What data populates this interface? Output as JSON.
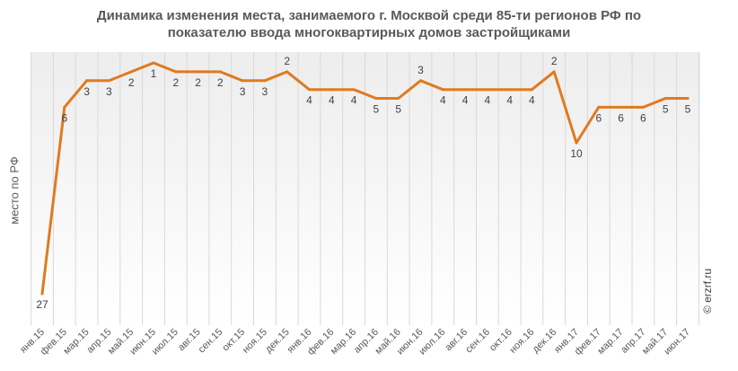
{
  "title_lines": [
    "Динамика изменения места, занимаемого г. Москвой среди 85-ти регионов РФ по",
    "показателю ввода многоквартирных домов застройщиками"
  ],
  "watermark": "© erzrf.ru",
  "colors": {
    "line": "#E07A1F",
    "grid": "#D9D9D9",
    "plot_gradient_top": "#EDEDED",
    "plot_gradient_bottom": "#FFFFFF",
    "label": "#404040",
    "axis_text": "#595959"
  },
  "chart_data": {
    "type": "line",
    "title": "Динамика изменения места, занимаемого г. Москвой среди 85-ти регионов РФ по показателю ввода многоквартирных домов застройщиками",
    "xlabel": "",
    "ylabel": "место по РФ",
    "y_reversed": true,
    "ylim": [
      1,
      27
    ],
    "grid": "vertical",
    "legend": "none",
    "categories": [
      "янв.15",
      "фев.15",
      "мар.15",
      "апр.15",
      "май.15",
      "июн.15",
      "июл.15",
      "авг.15",
      "сен.15",
      "окт.15",
      "ноя.15",
      "дек.15",
      "янв.16",
      "фев.16",
      "мар.16",
      "апр.16",
      "май.16",
      "июн.16",
      "июл.16",
      "авг.16",
      "сен.16",
      "окт.16",
      "ноя.16",
      "дек.16",
      "янв.17",
      "фев.17",
      "мар.17",
      "апр.17",
      "май.17",
      "июн.17"
    ],
    "series": [
      {
        "values": [
          27,
          6,
          3,
          3,
          2,
          1,
          2,
          2,
          2,
          3,
          3,
          2,
          4,
          4,
          4,
          5,
          5,
          3,
          4,
          4,
          4,
          4,
          4,
          2,
          10,
          6,
          6,
          6,
          5,
          5
        ],
        "label_positions": [
          "below",
          "below",
          "below",
          "below",
          "below",
          "below",
          "below",
          "below",
          "below",
          "below",
          "below",
          "above",
          "below",
          "below",
          "below",
          "below",
          "below",
          "above",
          "below",
          "below",
          "below",
          "below",
          "below",
          "above",
          "below",
          "below",
          "below",
          "below",
          "below",
          "below"
        ]
      }
    ]
  }
}
